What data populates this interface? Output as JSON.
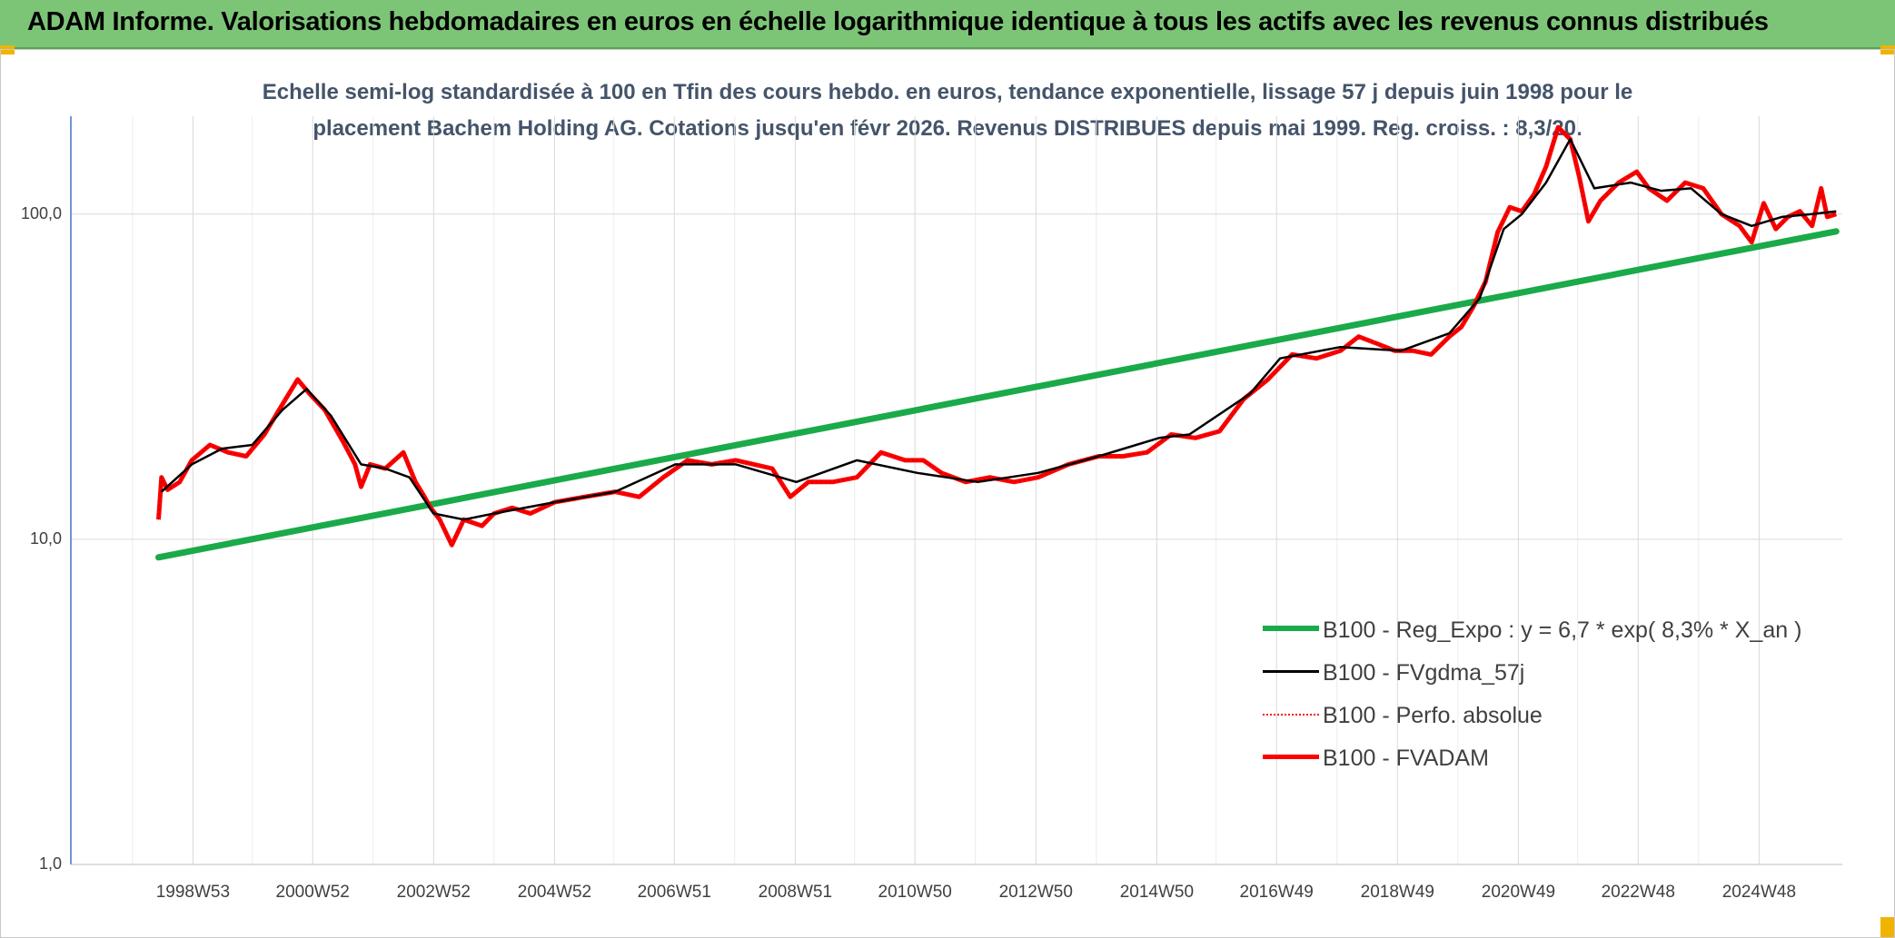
{
  "banner": {
    "title": "ADAM Informe. Valorisations hebdomadaires en euros en échelle logarithmique identique à tous les actifs avec les revenus connus distribués"
  },
  "colors": {
    "banner_bg": "#7cc576",
    "regression": "#1aaa4a",
    "smooth": "#000000",
    "perf": "#ff0000",
    "fvadam": "#ff0000",
    "grid": "#d9d9d9"
  },
  "chart_data": {
    "type": "line",
    "y_scale": "log",
    "ylim": [
      1,
      200
    ],
    "y_ticks": [
      "1,0",
      "10,0",
      "100,0"
    ],
    "x_ticks": [
      "1998W53",
      "2000W52",
      "2002W52",
      "2004W52",
      "2006W51",
      "2008W51",
      "2010W50",
      "2012W50",
      "2014W50",
      "2016W49",
      "2018W49",
      "2020W49",
      "2022W48",
      "2024W48"
    ],
    "xlim": [
      1997.0,
      2026.3
    ],
    "title_lines": [
      "Echelle semi-log standardisée à 100 en Tfin des cours hebdo. en euros, tendance exponentielle, lissage 57 j depuis juin 1998 pour le",
      "placement Bachem Holding AG. Cotations jusqu'en févr 2026. Revenus DISTRIBUES depuis mai 1999. Reg. croiss. : 8,3/20."
    ],
    "legend": [
      {
        "name": "B100 - Reg_Expo : y = 6,7 * exp( 8,3% *  X_an )",
        "style": "thick",
        "color": "#1aaa4a"
      },
      {
        "name": "B100 - FVgdma_57j",
        "style": "solid",
        "color": "#000000"
      },
      {
        "name": "B100 - Perfo. absolue",
        "style": "dotted",
        "color": "#ff0000"
      },
      {
        "name": "B100 - FVADAM",
        "style": "solid",
        "color": "#ff0000"
      }
    ],
    "series": [
      {
        "name": "B100 - Reg_Expo : y = 6,7 * exp( 8,3% *  X_an )",
        "x": [
          1998.45,
          2026.2
        ],
        "y": [
          8.8,
          88.5
        ]
      },
      {
        "name": "B100 - FVADAM",
        "x": [
          1998.45,
          1998.5,
          1998.6,
          1998.8,
          1999.0,
          1999.3,
          1999.6,
          1999.9,
          2000.2,
          2000.5,
          2000.75,
          2000.95,
          2001.2,
          2001.5,
          2001.7,
          2001.8,
          2001.95,
          2002.2,
          2002.5,
          2002.7,
          2002.85,
          2002.95,
          2003.1,
          2003.3,
          2003.5,
          2003.8,
          2004.0,
          2004.3,
          2004.6,
          2005.0,
          2005.5,
          2006.0,
          2006.4,
          2006.8,
          2007.2,
          2007.6,
          2008.0,
          2008.3,
          2008.6,
          2008.9,
          2009.2,
          2009.6,
          2010.0,
          2010.4,
          2010.8,
          2011.1,
          2011.4,
          2011.8,
          2012.2,
          2012.6,
          2013.0,
          2013.5,
          2014.0,
          2014.4,
          2014.8,
          2015.2,
          2015.6,
          2016.0,
          2016.4,
          2016.8,
          2017.2,
          2017.6,
          2018.0,
          2018.3,
          2018.6,
          2018.9,
          2019.2,
          2019.5,
          2019.8,
          2020.0,
          2020.2,
          2020.4,
          2020.6,
          2020.8,
          2021.0,
          2021.2,
          2021.4,
          2021.6,
          2021.8,
          2021.95,
          2022.1,
          2022.3,
          2022.6,
          2022.9,
          2023.1,
          2023.4,
          2023.7,
          2024.0,
          2024.3,
          2024.6,
          2024.8,
          2025.0,
          2025.2,
          2025.4,
          2025.6,
          2025.8,
          2025.95,
          2026.05,
          2026.2
        ],
        "y": [
          11.5,
          15.5,
          14.2,
          15.0,
          17.5,
          19.5,
          18.5,
          18.0,
          21.0,
          26.0,
          31.0,
          28.0,
          25.0,
          20.0,
          17.0,
          14.5,
          17.0,
          16.5,
          18.5,
          15.0,
          13.5,
          12.5,
          11.5,
          9.6,
          11.5,
          11.0,
          12.0,
          12.5,
          12.0,
          13.0,
          13.5,
          14.0,
          13.5,
          15.5,
          17.5,
          17.0,
          17.5,
          17.0,
          16.5,
          13.5,
          15.0,
          15.0,
          15.5,
          18.5,
          17.5,
          17.5,
          16.0,
          15.0,
          15.5,
          15.0,
          15.5,
          17.0,
          18.0,
          18.0,
          18.5,
          21.0,
          20.5,
          21.5,
          27.0,
          31.0,
          37.0,
          36.0,
          38.0,
          42.0,
          40.0,
          38.0,
          38.0,
          37.0,
          42.0,
          45.0,
          52.0,
          62.0,
          88.0,
          105.0,
          102.0,
          115.0,
          140.0,
          185.0,
          170.0,
          130.0,
          95.0,
          110.0,
          125.0,
          135.0,
          120.0,
          110.0,
          125.0,
          120.0,
          100.0,
          92.0,
          82.0,
          108.0,
          90.0,
          98.0,
          102.0,
          92.0,
          120.0,
          98.0,
          100.0
        ]
      },
      {
        "name": "B100 - FVgdma_57j",
        "x": [
          1998.5,
          1999.0,
          1999.5,
          2000.0,
          2000.5,
          2000.9,
          2001.3,
          2001.8,
          2002.2,
          2002.6,
          2003.0,
          2003.5,
          2004.0,
          2005.0,
          2006.0,
          2007.0,
          2008.0,
          2009.0,
          2010.0,
          2011.0,
          2012.0,
          2013.0,
          2014.0,
          2015.0,
          2015.5,
          2016.5,
          2017.0,
          2018.0,
          2019.0,
          2019.8,
          2020.3,
          2020.7,
          2021.0,
          2021.4,
          2021.8,
          2022.2,
          2022.8,
          2023.3,
          2023.8,
          2024.3,
          2024.8,
          2025.3,
          2025.8,
          2026.2
        ],
        "y": [
          14.0,
          17.0,
          19.0,
          19.5,
          25.0,
          29.0,
          24.0,
          17.0,
          16.5,
          15.5,
          12.0,
          11.5,
          12.0,
          13.0,
          14.0,
          17.0,
          17.0,
          15.0,
          17.5,
          16.0,
          15.0,
          16.0,
          18.0,
          20.5,
          21.0,
          28.0,
          36.0,
          39.0,
          38.0,
          43.0,
          55.0,
          90.0,
          100.0,
          125.0,
          170.0,
          120.0,
          125.0,
          118.0,
          120.0,
          100.0,
          92.0,
          98.0,
          100.0,
          102.0
        ]
      }
    ]
  }
}
